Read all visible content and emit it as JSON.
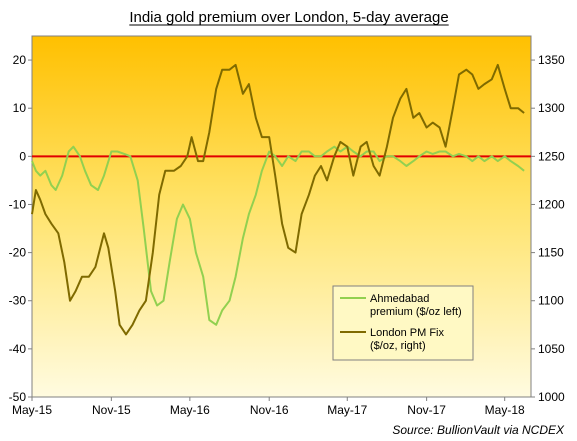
{
  "chart_data": {
    "type": "line",
    "title": "India gold premium over London, 5-day average",
    "source": "Source: BullionVault via NCDEX",
    "x_ticks": [
      "May-15",
      "Nov-15",
      "May-16",
      "Nov-16",
      "May-17",
      "Nov-17",
      "May-18"
    ],
    "x_range": [
      "2015-05-01",
      "2018-07-01"
    ],
    "y_left": {
      "ticks": [
        "-50",
        "-40",
        "-30",
        "-20",
        "-10",
        "0",
        "10",
        "20"
      ],
      "min": -50,
      "max": 25
    },
    "y_right": {
      "ticks": [
        "1000",
        "1050",
        "1100",
        "1150",
        "1200",
        "1250",
        "1300",
        "1350"
      ],
      "min": 1000,
      "max": 1375
    },
    "reference_line": {
      "value": 0,
      "axis": "left",
      "color": "#e00000"
    },
    "series": [
      {
        "name": "Ahmedabad premium ($/oz left)",
        "axis": "left",
        "color": "#92d050",
        "points": [
          [
            "2015-05-01",
            -1
          ],
          [
            "2015-05-10",
            -3
          ],
          [
            "2015-05-20",
            -4
          ],
          [
            "2015-06-01",
            -3
          ],
          [
            "2015-06-15",
            -6
          ],
          [
            "2015-06-25",
            -7
          ],
          [
            "2015-07-10",
            -4
          ],
          [
            "2015-07-25",
            1
          ],
          [
            "2015-08-05",
            2
          ],
          [
            "2015-08-20",
            0
          ],
          [
            "2015-09-01",
            -3
          ],
          [
            "2015-09-15",
            -6
          ],
          [
            "2015-10-01",
            -7
          ],
          [
            "2015-10-15",
            -4
          ],
          [
            "2015-11-01",
            1
          ],
          [
            "2015-11-15",
            1
          ],
          [
            "2015-12-01",
            0.5
          ],
          [
            "2015-12-15",
            0
          ],
          [
            "2016-01-01",
            -5
          ],
          [
            "2016-01-15",
            -15
          ],
          [
            "2016-02-01",
            -28
          ],
          [
            "2016-02-15",
            -31
          ],
          [
            "2016-03-01",
            -30
          ],
          [
            "2016-03-15",
            -22
          ],
          [
            "2016-04-01",
            -13
          ],
          [
            "2016-04-15",
            -10
          ],
          [
            "2016-05-01",
            -13
          ],
          [
            "2016-05-15",
            -20
          ],
          [
            "2016-06-01",
            -25
          ],
          [
            "2016-06-15",
            -34
          ],
          [
            "2016-07-01",
            -35
          ],
          [
            "2016-07-15",
            -32
          ],
          [
            "2016-08-01",
            -30
          ],
          [
            "2016-08-15",
            -25
          ],
          [
            "2016-09-01",
            -17
          ],
          [
            "2016-09-15",
            -12
          ],
          [
            "2016-10-01",
            -8
          ],
          [
            "2016-10-15",
            -3
          ],
          [
            "2016-11-01",
            1
          ],
          [
            "2016-11-15",
            0
          ],
          [
            "2016-12-01",
            -2
          ],
          [
            "2016-12-15",
            0
          ],
          [
            "2017-01-01",
            -1
          ],
          [
            "2017-01-15",
            1
          ],
          [
            "2017-02-01",
            1
          ],
          [
            "2017-02-15",
            0
          ],
          [
            "2017-03-01",
            0
          ],
          [
            "2017-03-15",
            1
          ],
          [
            "2017-04-01",
            2
          ],
          [
            "2017-04-15",
            1
          ],
          [
            "2017-05-01",
            2
          ],
          [
            "2017-05-15",
            1
          ],
          [
            "2017-06-01",
            0
          ],
          [
            "2017-06-15",
            1
          ],
          [
            "2017-07-01",
            1
          ],
          [
            "2017-07-15",
            -1
          ],
          [
            "2017-08-01",
            0
          ],
          [
            "2017-08-15",
            0
          ],
          [
            "2017-09-01",
            -1
          ],
          [
            "2017-09-15",
            -2
          ],
          [
            "2017-10-01",
            -1
          ],
          [
            "2017-10-15",
            0
          ],
          [
            "2017-11-01",
            1
          ],
          [
            "2017-11-15",
            0.5
          ],
          [
            "2017-12-01",
            1
          ],
          [
            "2017-12-15",
            1
          ],
          [
            "2018-01-01",
            0
          ],
          [
            "2018-01-15",
            0.5
          ],
          [
            "2018-02-01",
            0
          ],
          [
            "2018-02-15",
            -1
          ],
          [
            "2018-03-01",
            0
          ],
          [
            "2018-03-15",
            -1
          ],
          [
            "2018-04-01",
            0
          ],
          [
            "2018-04-15",
            -1
          ],
          [
            "2018-05-01",
            0
          ],
          [
            "2018-05-15",
            -1
          ],
          [
            "2018-06-01",
            -2
          ],
          [
            "2018-06-15",
            -3
          ]
        ]
      },
      {
        "name": "London PM Fix ($/oz, right)",
        "axis": "right",
        "color": "#7f6a00",
        "points": [
          [
            "2015-05-01",
            1190
          ],
          [
            "2015-05-10",
            1215
          ],
          [
            "2015-05-20",
            1205
          ],
          [
            "2015-06-01",
            1190
          ],
          [
            "2015-06-15",
            1180
          ],
          [
            "2015-07-01",
            1170
          ],
          [
            "2015-07-15",
            1140
          ],
          [
            "2015-07-28",
            1100
          ],
          [
            "2015-08-10",
            1110
          ],
          [
            "2015-08-25",
            1125
          ],
          [
            "2015-09-10",
            1125
          ],
          [
            "2015-09-25",
            1135
          ],
          [
            "2015-10-15",
            1170
          ],
          [
            "2015-10-25",
            1155
          ],
          [
            "2015-11-10",
            1110
          ],
          [
            "2015-11-20",
            1075
          ],
          [
            "2015-12-05",
            1065
          ],
          [
            "2015-12-20",
            1075
          ],
          [
            "2016-01-05",
            1090
          ],
          [
            "2016-01-20",
            1100
          ],
          [
            "2016-02-05",
            1150
          ],
          [
            "2016-02-20",
            1210
          ],
          [
            "2016-03-05",
            1235
          ],
          [
            "2016-03-25",
            1235
          ],
          [
            "2016-04-10",
            1240
          ],
          [
            "2016-04-25",
            1250
          ],
          [
            "2016-05-05",
            1270
          ],
          [
            "2016-05-20",
            1245
          ],
          [
            "2016-06-01",
            1245
          ],
          [
            "2016-06-15",
            1275
          ],
          [
            "2016-07-01",
            1320
          ],
          [
            "2016-07-15",
            1340
          ],
          [
            "2016-08-01",
            1340
          ],
          [
            "2016-08-15",
            1345
          ],
          [
            "2016-09-01",
            1315
          ],
          [
            "2016-09-15",
            1325
          ],
          [
            "2016-10-01",
            1290
          ],
          [
            "2016-10-15",
            1270
          ],
          [
            "2016-11-01",
            1270
          ],
          [
            "2016-11-15",
            1230
          ],
          [
            "2016-12-01",
            1180
          ],
          [
            "2016-12-15",
            1155
          ],
          [
            "2017-01-01",
            1150
          ],
          [
            "2017-01-15",
            1190
          ],
          [
            "2017-02-01",
            1210
          ],
          [
            "2017-02-15",
            1230
          ],
          [
            "2017-03-01",
            1240
          ],
          [
            "2017-03-15",
            1225
          ],
          [
            "2017-04-01",
            1250
          ],
          [
            "2017-04-15",
            1265
          ],
          [
            "2017-05-01",
            1260
          ],
          [
            "2017-05-15",
            1230
          ],
          [
            "2017-06-01",
            1260
          ],
          [
            "2017-06-15",
            1265
          ],
          [
            "2017-07-01",
            1240
          ],
          [
            "2017-07-15",
            1230
          ],
          [
            "2017-08-01",
            1260
          ],
          [
            "2017-08-15",
            1290
          ],
          [
            "2017-09-01",
            1310
          ],
          [
            "2017-09-15",
            1320
          ],
          [
            "2017-10-01",
            1290
          ],
          [
            "2017-10-15",
            1295
          ],
          [
            "2017-11-01",
            1280
          ],
          [
            "2017-11-15",
            1285
          ],
          [
            "2017-12-01",
            1280
          ],
          [
            "2017-12-15",
            1260
          ],
          [
            "2018-01-01",
            1300
          ],
          [
            "2018-01-15",
            1335
          ],
          [
            "2018-02-01",
            1340
          ],
          [
            "2018-02-15",
            1335
          ],
          [
            "2018-03-01",
            1320
          ],
          [
            "2018-03-15",
            1325
          ],
          [
            "2018-04-01",
            1330
          ],
          [
            "2018-04-15",
            1345
          ],
          [
            "2018-05-01",
            1320
          ],
          [
            "2018-05-15",
            1300
          ],
          [
            "2018-06-01",
            1300
          ],
          [
            "2018-06-15",
            1295
          ]
        ]
      }
    ]
  }
}
